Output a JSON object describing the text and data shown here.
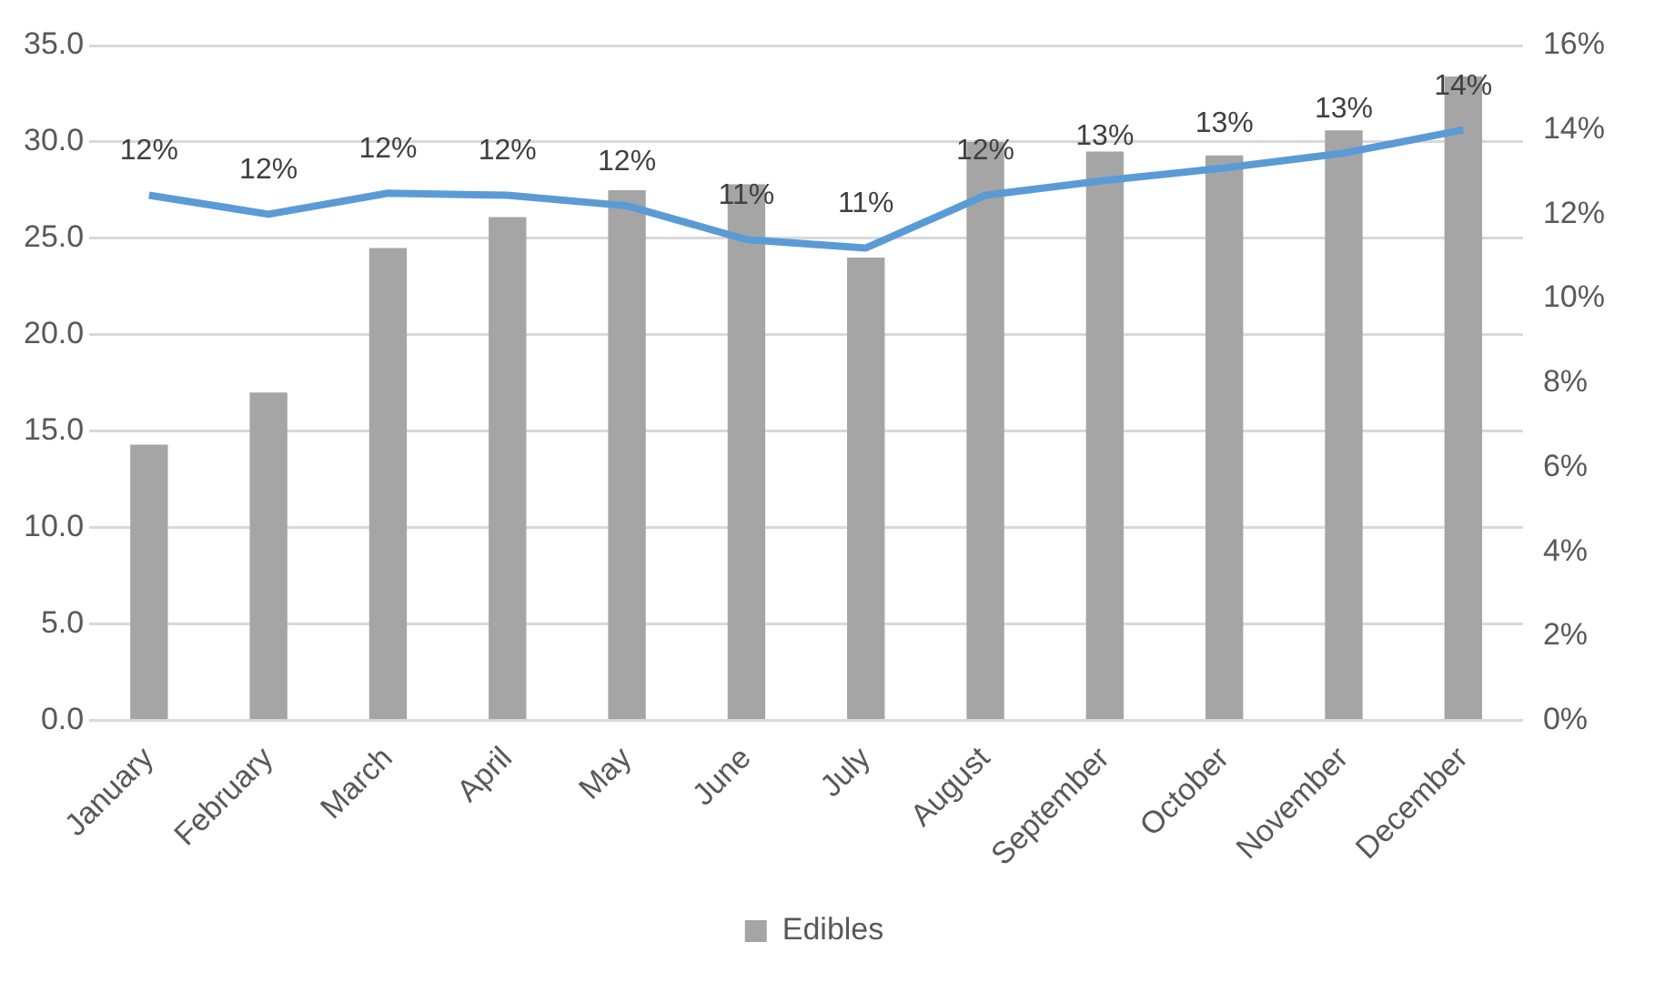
{
  "chart_data": {
    "type": "bar",
    "categories": [
      "January",
      "February",
      "March",
      "April",
      "May",
      "June",
      "July",
      "August",
      "September",
      "October",
      "November",
      "December"
    ],
    "series": [
      {
        "name": "Edibles",
        "color": "#a5a5a5",
        "values": [
          14.3,
          17.0,
          24.5,
          26.1,
          27.5,
          27.8,
          24.0,
          30.0,
          29.5,
          29.3,
          30.6,
          33.4
        ]
      },
      {
        "type": "line",
        "axis": "y2",
        "color": "#5b9bd5",
        "values": [
          12.45,
          12.0,
          12.5,
          12.45,
          12.2,
          11.4,
          11.2,
          12.45,
          12.8,
          13.1,
          13.45,
          14.0
        ],
        "value_labels": [
          "12%",
          "12%",
          "12%",
          "12%",
          "12%",
          "11%",
          "11%",
          "12%",
          "13%",
          "13%",
          "13%",
          "14%"
        ]
      }
    ],
    "ylim": [
      0,
      35
    ],
    "yticks": [
      {
        "value": 0,
        "label": "0.0"
      },
      {
        "value": 5,
        "label": "5.0"
      },
      {
        "value": 10,
        "label": "10.0"
      },
      {
        "value": 15,
        "label": "15.0"
      },
      {
        "value": 20,
        "label": "20.0"
      },
      {
        "value": 25,
        "label": "25.0"
      },
      {
        "value": 30,
        "label": "30.0"
      },
      {
        "value": 35,
        "label": "35.0"
      }
    ],
    "y2lim": [
      0,
      16
    ],
    "y2ticks": [
      {
        "value": 0,
        "label": "0%"
      },
      {
        "value": 2,
        "label": "2%"
      },
      {
        "value": 4,
        "label": "4%"
      },
      {
        "value": 6,
        "label": "6%"
      },
      {
        "value": 8,
        "label": "8%"
      },
      {
        "value": 10,
        "label": "10%"
      },
      {
        "value": 12,
        "label": "12%"
      },
      {
        "value": 14,
        "label": "14%"
      },
      {
        "value": 16,
        "label": "16%"
      }
    ],
    "grid": "y",
    "legend": "bottom",
    "marker": "none",
    "line_style": "solid"
  }
}
